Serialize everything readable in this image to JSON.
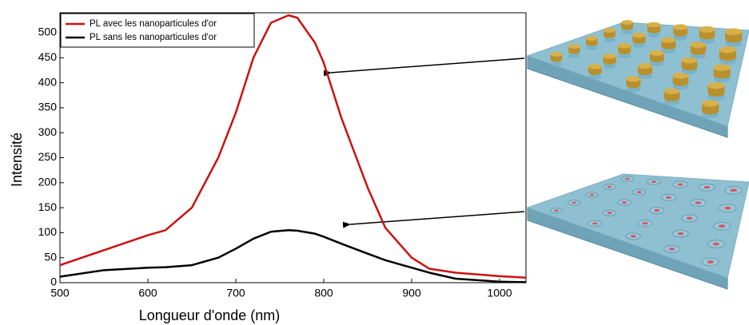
{
  "chart_data": {
    "type": "line",
    "x_label": "Longueur d'onde (nm)",
    "y_label": "Intensité",
    "x": [
      500,
      550,
      600,
      620,
      650,
      680,
      700,
      720,
      740,
      760,
      770,
      790,
      800,
      820,
      850,
      870,
      900,
      920,
      950,
      1000,
      1030
    ],
    "series": [
      {
        "name": "PL avec les nanoparticules d'or",
        "color": "#cc1111",
        "values": [
          35,
          65,
          95,
          105,
          150,
          250,
          340,
          450,
          520,
          535,
          530,
          480,
          440,
          330,
          190,
          110,
          50,
          28,
          20,
          13,
          10
        ]
      },
      {
        "name": "PL sans les nanoparticules d'or",
        "color": "#000000",
        "values": [
          12,
          25,
          30,
          31,
          35,
          50,
          68,
          88,
          102,
          105,
          104,
          98,
          92,
          78,
          58,
          45,
          30,
          20,
          8,
          2,
          1
        ]
      }
    ],
    "xlim": [
      500,
      1030
    ],
    "ylim": [
      0,
      540
    ],
    "xticks": [
      500,
      600,
      700,
      800,
      900,
      1000
    ],
    "yticks": [
      0,
      50,
      100,
      150,
      200,
      250,
      300,
      350,
      400,
      450,
      500
    ],
    "legend": "upper left"
  }
}
